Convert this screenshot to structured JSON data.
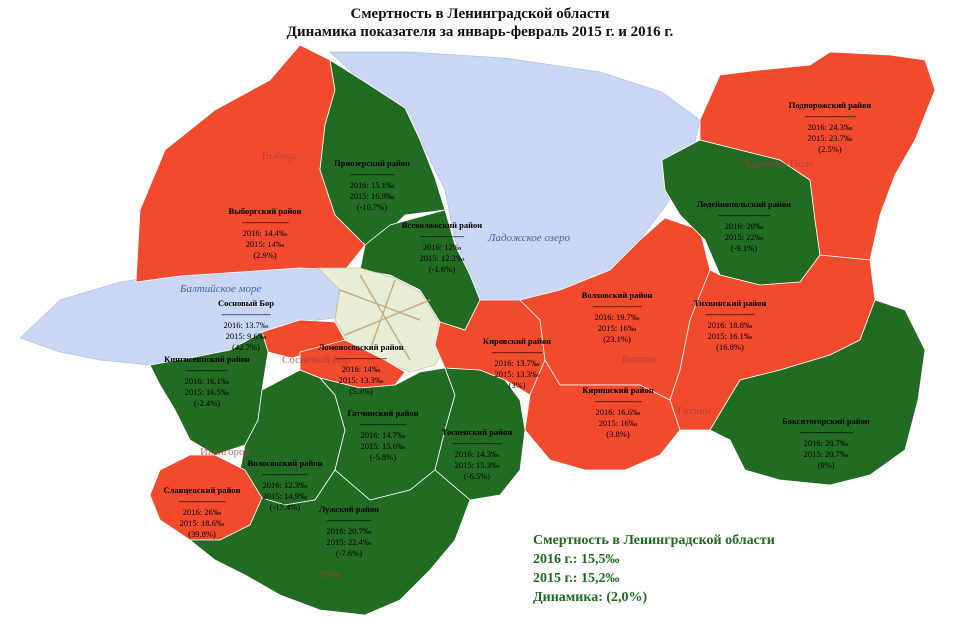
{
  "header": {
    "title": "Смертность в Ленинградской области",
    "subtitle": "Динамика показателя за январь-февраль 2015 г. и 2016 г."
  },
  "colors": {
    "increase": "#f14a2c",
    "decrease": "#226b22",
    "water": "#c9d6f4",
    "city": "#e8edd6"
  },
  "water_labels": {
    "baltic": "Балтийское море",
    "ladoga": "Ладожское озеро"
  },
  "cities": {
    "vyborg": "Выборг",
    "lodeynoe_pole": "Лодейное Поле",
    "volkhov": "Волхов",
    "tikhvin": "Тихвин",
    "sosnovy_bor": "Сосновый Бор",
    "ivangorod": "Ивангород",
    "luga": "Луга"
  },
  "districts": [
    {
      "id": "podporozhsky",
      "name": "Подпорожский район",
      "y2016": "2016: 24.3‰",
      "y2015": "2015: 23.7‰",
      "change": "(2.5%)",
      "trend": "increase"
    },
    {
      "id": "priozersky",
      "name": "Приозерский район",
      "y2016": "2016: 15.1‰",
      "y2015": "2015: 16.9‰",
      "change": "(-10.7%)",
      "trend": "decrease"
    },
    {
      "id": "lodeynopolsky",
      "name": "Лодейнопольский район",
      "y2016": "2016: 20‰",
      "y2015": "2015: 22‰",
      "change": "(-9.1%)",
      "trend": "decrease"
    },
    {
      "id": "vyborgsky",
      "name": "Выборгский район",
      "y2016": "2016: 14.4‰",
      "y2015": "2015: 14‰",
      "change": "(2.9%)",
      "trend": "increase"
    },
    {
      "id": "vsevolozhsky",
      "name": "Всеволожский район",
      "y2016": "2016: 12‰",
      "y2015": "2015: 12.2‰",
      "change": "(-1.6%)",
      "trend": "decrease"
    },
    {
      "id": "sosnovy_bor",
      "name": "Сосновый Бор",
      "y2016": "2016: 13.7‰",
      "y2015": "2015: 9.6‰",
      "change": "(42.7%)",
      "trend": "increase"
    },
    {
      "id": "volkhovsky",
      "name": "Волховский район",
      "y2016": "2016: 19.7‰",
      "y2015": "2015: 16‰",
      "change": "(23.1%)",
      "trend": "increase"
    },
    {
      "id": "tikhvinsky",
      "name": "Тихвинский район",
      "y2016": "2016: 18.8‰",
      "y2015": "2015: 16.1‰",
      "change": "(16.8%)",
      "trend": "increase"
    },
    {
      "id": "kirovsky",
      "name": "Кировский район",
      "y2016": "2016: 13.7‰",
      "y2015": "2015: 13.3‰",
      "change": "(3%)",
      "trend": "increase"
    },
    {
      "id": "lomonosovsky",
      "name": "Ломоносовский район",
      "y2016": "2016: 14‰",
      "y2015": "2015: 13.3‰",
      "change": "(5.3%)",
      "trend": "increase"
    },
    {
      "id": "kingiseppsky",
      "name": "Кингисеппский район",
      "y2016": "2016: 16.1‰",
      "y2015": "2015: 16.5‰",
      "change": "(-2.4%)",
      "trend": "decrease"
    },
    {
      "id": "kirishsky",
      "name": "Киришский район",
      "y2016": "2016: 16.6‰",
      "y2015": "2015: 16‰",
      "change": "(3.8%)",
      "trend": "increase"
    },
    {
      "id": "gatchinsky",
      "name": "Гатчинский район",
      "y2016": "2016: 14.7‰",
      "y2015": "2015: 15.6‰",
      "change": "(-5.8%)",
      "trend": "decrease"
    },
    {
      "id": "tosnensky",
      "name": "Тосненский район",
      "y2016": "2016: 14.3‰",
      "y2015": "2015: 15.3‰",
      "change": "(-6.5%)",
      "trend": "decrease"
    },
    {
      "id": "boksitogorsky",
      "name": "Бокситогорский район",
      "y2016": "2016: 20.7‰",
      "y2015": "2015: 20.7‰",
      "change": "(0%)",
      "trend": "decrease"
    },
    {
      "id": "volosovsky",
      "name": "Волосовский район",
      "y2016": "2016: 12.3‰",
      "y2015": "2015: 14.9‰",
      "change": "(-17.4%)",
      "trend": "decrease"
    },
    {
      "id": "slantsevsky",
      "name": "Сланцевский район",
      "y2016": "2016: 26‰",
      "y2015": "2015: 18.6‰",
      "change": "(39.8%)",
      "trend": "increase"
    },
    {
      "id": "luzhsky",
      "name": "Лужский район",
      "y2016": "2016: 20.7‰",
      "y2015": "2015: 22.4‰",
      "change": "(-7.6%)",
      "trend": "decrease"
    }
  ],
  "summary": {
    "title": "Смертность в Ленинградской области",
    "y2016": "2016 г.: 15,5‰",
    "y2015": "2015 г.: 15,2‰",
    "change": "Динамика: (2,0%)"
  }
}
